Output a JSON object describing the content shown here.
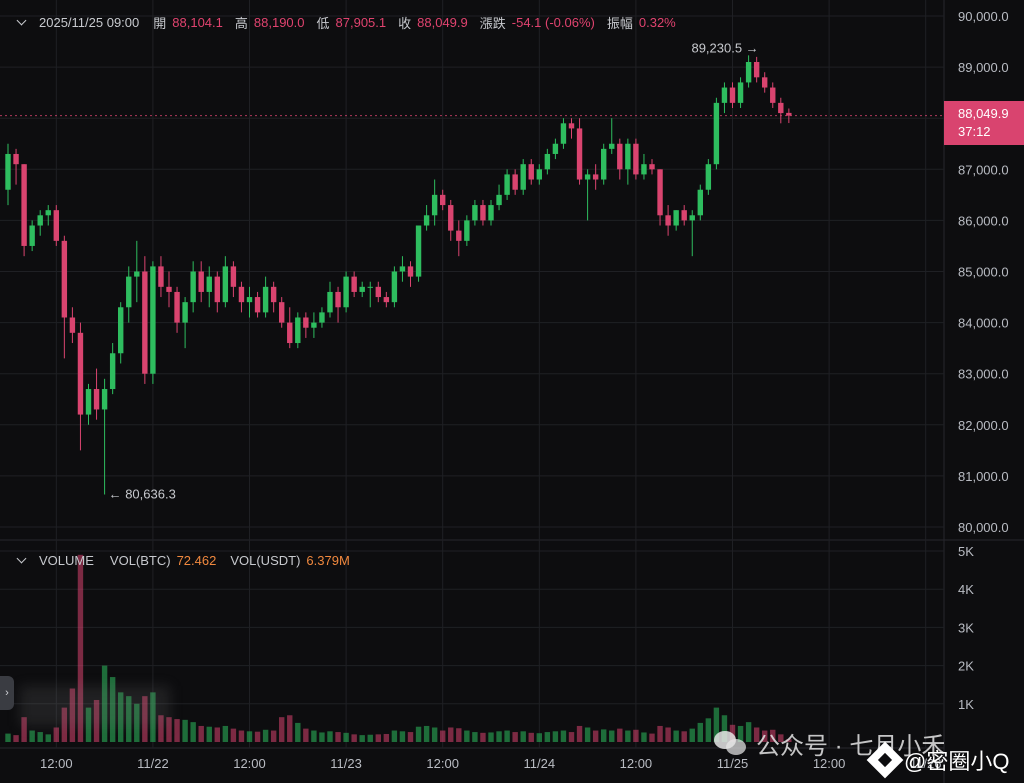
{
  "header": {
    "datetime": "2025/11/25 09:00",
    "open_label": "開",
    "open_value": "88,104.1",
    "high_label": "高",
    "high_value": "88,190.0",
    "low_label": "低",
    "low_value": "87,905.1",
    "close_label": "收",
    "close_value": "88,049.9",
    "change_label": "漲跌",
    "change_value": "-54.1 (-0.06%)",
    "amplitude_label": "振幅",
    "amplitude_value": "0.32%"
  },
  "volume_header": {
    "title": "VOLUME",
    "btc_label": "VOL(BTC)",
    "btc_value": "72.462",
    "usdt_label": "VOL(USDT)",
    "usdt_value": "6.379M"
  },
  "price_tag": {
    "price": "88,049.9",
    "countdown": "37:12"
  },
  "side_handle": "›",
  "watermark": {
    "text": "公众号 · 七月小禾"
  },
  "watermark2": {
    "text": "@密圈小Q"
  },
  "colors": {
    "up": "#2ebd5f",
    "down": "#d9446f",
    "grid": "#1f2024",
    "axis_text": "#b9bcc3",
    "accent": "#f0883e"
  },
  "chart_data": {
    "type": "candlestick",
    "price_axis": {
      "ticks": [
        80000,
        81000,
        82000,
        83000,
        84000,
        85000,
        86000,
        87000,
        88000,
        89000,
        90000
      ],
      "tick_labels": [
        "80,000.0",
        "81,000.0",
        "82,000.0",
        "83,000.0",
        "84,000.0",
        "85,000.0",
        "86,000.0",
        "87,000.0",
        "88,000.0",
        "89,000.0",
        "90,000.0"
      ],
      "range": [
        80000,
        90000
      ]
    },
    "volume_axis": {
      "ticks": [
        1000,
        2000,
        3000,
        4000,
        5000
      ],
      "tick_labels": [
        "1K",
        "2K",
        "3K",
        "4K",
        "5K"
      ],
      "range": [
        0,
        5000
      ]
    },
    "time_axis": {
      "tick_labels": [
        "12:00",
        "11/22",
        "12:00",
        "11/23",
        "12:00",
        "11/24",
        "12:00",
        "11/25",
        "12:00",
        "11/26"
      ],
      "tick_index": [
        6,
        18,
        30,
        42,
        54,
        66,
        78,
        90,
        102,
        114
      ]
    },
    "last_price": 88049.9,
    "annotations": [
      {
        "label": "89,230.5",
        "candle": 94,
        "price": 89230.5,
        "kind": "high"
      },
      {
        "label": "80,636.3",
        "candle": 12,
        "price": 80636.3,
        "kind": "low"
      }
    ],
    "candles": [
      {
        "o": 86600,
        "h": 87500,
        "l": 86300,
        "c": 87300,
        "v": 220
      },
      {
        "o": 87300,
        "h": 87400,
        "l": 86700,
        "c": 87100,
        "v": 180
      },
      {
        "o": 87100,
        "h": 87100,
        "l": 85300,
        "c": 85500,
        "v": 650
      },
      {
        "o": 85500,
        "h": 86000,
        "l": 85400,
        "c": 85900,
        "v": 300
      },
      {
        "o": 85900,
        "h": 86200,
        "l": 85700,
        "c": 86100,
        "v": 260
      },
      {
        "o": 86100,
        "h": 86300,
        "l": 85900,
        "c": 86200,
        "v": 200
      },
      {
        "o": 86200,
        "h": 86300,
        "l": 85500,
        "c": 85600,
        "v": 380
      },
      {
        "o": 85600,
        "h": 85700,
        "l": 83300,
        "c": 84100,
        "v": 900
      },
      {
        "o": 84100,
        "h": 84300,
        "l": 83600,
        "c": 83800,
        "v": 1400
      },
      {
        "o": 83800,
        "h": 84000,
        "l": 81500,
        "c": 82200,
        "v": 4900
      },
      {
        "o": 82200,
        "h": 82800,
        "l": 82000,
        "c": 82700,
        "v": 900
      },
      {
        "o": 82700,
        "h": 83100,
        "l": 82100,
        "c": 82300,
        "v": 1100
      },
      {
        "o": 82300,
        "h": 82900,
        "l": 80636,
        "c": 82700,
        "v": 2000
      },
      {
        "o": 82700,
        "h": 83600,
        "l": 82600,
        "c": 83400,
        "v": 1700
      },
      {
        "o": 83400,
        "h": 84400,
        "l": 83200,
        "c": 84300,
        "v": 1300
      },
      {
        "o": 84300,
        "h": 85100,
        "l": 84000,
        "c": 84900,
        "v": 1200
      },
      {
        "o": 84900,
        "h": 85600,
        "l": 84400,
        "c": 85000,
        "v": 1000
      },
      {
        "o": 85000,
        "h": 85300,
        "l": 82800,
        "c": 83000,
        "v": 1200
      },
      {
        "o": 83000,
        "h": 85200,
        "l": 82800,
        "c": 85100,
        "v": 1300
      },
      {
        "o": 85100,
        "h": 85300,
        "l": 84500,
        "c": 84700,
        "v": 700
      },
      {
        "o": 84700,
        "h": 85000,
        "l": 84300,
        "c": 84600,
        "v": 650
      },
      {
        "o": 84600,
        "h": 84700,
        "l": 83800,
        "c": 84000,
        "v": 600
      },
      {
        "o": 84000,
        "h": 84500,
        "l": 83500,
        "c": 84400,
        "v": 580
      },
      {
        "o": 84400,
        "h": 85200,
        "l": 84200,
        "c": 85000,
        "v": 520
      },
      {
        "o": 85000,
        "h": 85200,
        "l": 84400,
        "c": 84600,
        "v": 420
      },
      {
        "o": 84600,
        "h": 85100,
        "l": 84300,
        "c": 84900,
        "v": 400
      },
      {
        "o": 84900,
        "h": 85000,
        "l": 84200,
        "c": 84400,
        "v": 380
      },
      {
        "o": 84400,
        "h": 85300,
        "l": 84300,
        "c": 85100,
        "v": 420
      },
      {
        "o": 85100,
        "h": 85200,
        "l": 84500,
        "c": 84700,
        "v": 350
      },
      {
        "o": 84700,
        "h": 84800,
        "l": 84200,
        "c": 84400,
        "v": 300
      },
      {
        "o": 84400,
        "h": 84700,
        "l": 84100,
        "c": 84500,
        "v": 280
      },
      {
        "o": 84500,
        "h": 84600,
        "l": 84100,
        "c": 84200,
        "v": 270
      },
      {
        "o": 84200,
        "h": 84900,
        "l": 84100,
        "c": 84700,
        "v": 320
      },
      {
        "o": 84700,
        "h": 84800,
        "l": 84200,
        "c": 84400,
        "v": 300
      },
      {
        "o": 84400,
        "h": 84500,
        "l": 83900,
        "c": 84000,
        "v": 650
      },
      {
        "o": 84000,
        "h": 84300,
        "l": 83500,
        "c": 83600,
        "v": 700
      },
      {
        "o": 83600,
        "h": 84200,
        "l": 83500,
        "c": 84100,
        "v": 500
      },
      {
        "o": 84100,
        "h": 84200,
        "l": 83700,
        "c": 83900,
        "v": 350
      },
      {
        "o": 83900,
        "h": 84200,
        "l": 83700,
        "c": 84000,
        "v": 300
      },
      {
        "o": 84000,
        "h": 84300,
        "l": 83900,
        "c": 84200,
        "v": 250
      },
      {
        "o": 84200,
        "h": 84800,
        "l": 84100,
        "c": 84600,
        "v": 280
      },
      {
        "o": 84600,
        "h": 84700,
        "l": 84000,
        "c": 84300,
        "v": 260
      },
      {
        "o": 84300,
        "h": 85000,
        "l": 84200,
        "c": 84900,
        "v": 240
      },
      {
        "o": 84900,
        "h": 85000,
        "l": 84500,
        "c": 84600,
        "v": 200
      },
      {
        "o": 84600,
        "h": 84800,
        "l": 84500,
        "c": 84700,
        "v": 180
      },
      {
        "o": 84700,
        "h": 84800,
        "l": 84300,
        "c": 84700,
        "v": 190
      },
      {
        "o": 84700,
        "h": 84800,
        "l": 84400,
        "c": 84500,
        "v": 200
      },
      {
        "o": 84500,
        "h": 84600,
        "l": 84300,
        "c": 84400,
        "v": 210
      },
      {
        "o": 84400,
        "h": 85100,
        "l": 84300,
        "c": 85000,
        "v": 300
      },
      {
        "o": 85000,
        "h": 85300,
        "l": 84800,
        "c": 85100,
        "v": 280
      },
      {
        "o": 85100,
        "h": 85200,
        "l": 84700,
        "c": 84900,
        "v": 260
      },
      {
        "o": 84900,
        "h": 85900,
        "l": 84800,
        "c": 85900,
        "v": 400
      },
      {
        "o": 85900,
        "h": 86300,
        "l": 85800,
        "c": 86100,
        "v": 420
      },
      {
        "o": 86100,
        "h": 86800,
        "l": 85900,
        "c": 86500,
        "v": 380
      },
      {
        "o": 86500,
        "h": 86600,
        "l": 86200,
        "c": 86300,
        "v": 300
      },
      {
        "o": 86300,
        "h": 86400,
        "l": 85600,
        "c": 85800,
        "v": 380
      },
      {
        "o": 85800,
        "h": 86000,
        "l": 85300,
        "c": 85600,
        "v": 360
      },
      {
        "o": 85600,
        "h": 86100,
        "l": 85500,
        "c": 86000,
        "v": 300
      },
      {
        "o": 86000,
        "h": 86400,
        "l": 85900,
        "c": 86300,
        "v": 260
      },
      {
        "o": 86300,
        "h": 86400,
        "l": 85900,
        "c": 86000,
        "v": 240
      },
      {
        "o": 86000,
        "h": 86400,
        "l": 85900,
        "c": 86300,
        "v": 250
      },
      {
        "o": 86300,
        "h": 86700,
        "l": 86200,
        "c": 86500,
        "v": 280
      },
      {
        "o": 86500,
        "h": 87000,
        "l": 86400,
        "c": 86900,
        "v": 300
      },
      {
        "o": 86900,
        "h": 87000,
        "l": 86500,
        "c": 86600,
        "v": 260
      },
      {
        "o": 86600,
        "h": 87200,
        "l": 86500,
        "c": 87100,
        "v": 280
      },
      {
        "o": 87100,
        "h": 87200,
        "l": 86700,
        "c": 86800,
        "v": 240
      },
      {
        "o": 86800,
        "h": 87100,
        "l": 86700,
        "c": 87000,
        "v": 230
      },
      {
        "o": 87000,
        "h": 87400,
        "l": 86900,
        "c": 87300,
        "v": 260
      },
      {
        "o": 87300,
        "h": 87600,
        "l": 87200,
        "c": 87500,
        "v": 280
      },
      {
        "o": 87500,
        "h": 88000,
        "l": 87400,
        "c": 87900,
        "v": 300
      },
      {
        "o": 87900,
        "h": 88000,
        "l": 87600,
        "c": 87800,
        "v": 260
      },
      {
        "o": 87800,
        "h": 88000,
        "l": 86700,
        "c": 86800,
        "v": 420
      },
      {
        "o": 86800,
        "h": 87000,
        "l": 86000,
        "c": 86900,
        "v": 380
      },
      {
        "o": 86900,
        "h": 87100,
        "l": 86600,
        "c": 86800,
        "v": 300
      },
      {
        "o": 86800,
        "h": 87500,
        "l": 86700,
        "c": 87400,
        "v": 330
      },
      {
        "o": 87400,
        "h": 88000,
        "l": 87300,
        "c": 87500,
        "v": 300
      },
      {
        "o": 87500,
        "h": 87600,
        "l": 86800,
        "c": 87000,
        "v": 350
      },
      {
        "o": 87000,
        "h": 87600,
        "l": 86700,
        "c": 87500,
        "v": 300
      },
      {
        "o": 87500,
        "h": 87600,
        "l": 86800,
        "c": 86900,
        "v": 320
      },
      {
        "o": 86900,
        "h": 87300,
        "l": 86800,
        "c": 87100,
        "v": 250
      },
      {
        "o": 87100,
        "h": 87200,
        "l": 86900,
        "c": 87000,
        "v": 220
      },
      {
        "o": 87000,
        "h": 87000,
        "l": 85900,
        "c": 86100,
        "v": 420
      },
      {
        "o": 86100,
        "h": 86300,
        "l": 85700,
        "c": 85900,
        "v": 380
      },
      {
        "o": 85900,
        "h": 86200,
        "l": 85800,
        "c": 86200,
        "v": 300
      },
      {
        "o": 86200,
        "h": 86300,
        "l": 85900,
        "c": 86000,
        "v": 280
      },
      {
        "o": 86000,
        "h": 86200,
        "l": 85300,
        "c": 86100,
        "v": 350
      },
      {
        "o": 86100,
        "h": 86700,
        "l": 86000,
        "c": 86600,
        "v": 500
      },
      {
        "o": 86600,
        "h": 87200,
        "l": 86500,
        "c": 87100,
        "v": 620
      },
      {
        "o": 87100,
        "h": 88400,
        "l": 87000,
        "c": 88300,
        "v": 900
      },
      {
        "o": 88300,
        "h": 88700,
        "l": 88100,
        "c": 88600,
        "v": 700
      },
      {
        "o": 88600,
        "h": 88700,
        "l": 88200,
        "c": 88300,
        "v": 450
      },
      {
        "o": 88300,
        "h": 88800,
        "l": 88200,
        "c": 88700,
        "v": 420
      },
      {
        "o": 88700,
        "h": 89230,
        "l": 88600,
        "c": 89100,
        "v": 520
      },
      {
        "o": 89100,
        "h": 89200,
        "l": 88700,
        "c": 88800,
        "v": 380
      },
      {
        "o": 88800,
        "h": 88900,
        "l": 88500,
        "c": 88600,
        "v": 300
      },
      {
        "o": 88600,
        "h": 88700,
        "l": 88200,
        "c": 88300,
        "v": 320
      },
      {
        "o": 88300,
        "h": 88400,
        "l": 87900,
        "c": 88100,
        "v": 200
      },
      {
        "o": 88104.1,
        "h": 88190,
        "l": 87905.1,
        "c": 88049.9,
        "v": 72
      }
    ]
  }
}
